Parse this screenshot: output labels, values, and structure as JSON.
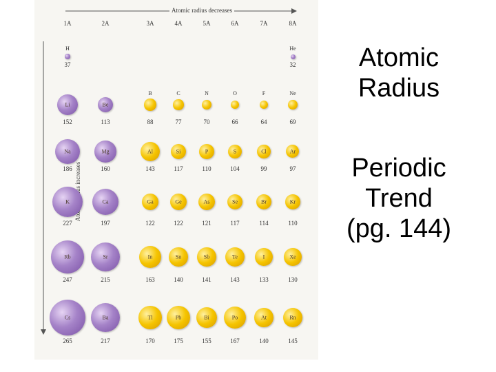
{
  "slide": {
    "title_line1": "Atomic",
    "title_line2": "Radius",
    "subtitle_line1": "Periodic",
    "subtitle_line2": "Trend",
    "subtitle_line3": "(pg. 144)"
  },
  "figure": {
    "top_arrow_label": "Atomic radius decreases",
    "side_arrow_label": "Atomic radius increases",
    "groups": [
      "1A",
      "2A",
      "3A",
      "4A",
      "5A",
      "6A",
      "7A",
      "8A"
    ],
    "colors": {
      "metal_atom": "#9b78c2",
      "nonmetal_atom": "#f5c400"
    },
    "elements": [
      {
        "symbol": "H",
        "radius": "37",
        "group": 0,
        "period": 0,
        "color": "purple"
      },
      {
        "symbol": "He",
        "radius": "32",
        "group": 7,
        "period": 0,
        "color": "purple"
      },
      {
        "symbol": "Li",
        "radius": "152",
        "group": 0,
        "period": 1,
        "color": "purple"
      },
      {
        "symbol": "Be",
        "radius": "113",
        "group": 1,
        "period": 1,
        "color": "purple"
      },
      {
        "symbol": "B",
        "radius": "88",
        "group": 2,
        "period": 1,
        "color": "gold"
      },
      {
        "symbol": "C",
        "radius": "77",
        "group": 3,
        "period": 1,
        "color": "gold"
      },
      {
        "symbol": "N",
        "radius": "70",
        "group": 4,
        "period": 1,
        "color": "gold"
      },
      {
        "symbol": "O",
        "radius": "66",
        "group": 5,
        "period": 1,
        "color": "gold"
      },
      {
        "symbol": "F",
        "radius": "64",
        "group": 6,
        "period": 1,
        "color": "gold"
      },
      {
        "symbol": "Ne",
        "radius": "69",
        "group": 7,
        "period": 1,
        "color": "gold"
      },
      {
        "symbol": "Na",
        "radius": "186",
        "group": 0,
        "period": 2,
        "color": "purple"
      },
      {
        "symbol": "Mg",
        "radius": "160",
        "group": 1,
        "period": 2,
        "color": "purple"
      },
      {
        "symbol": "Al",
        "radius": "143",
        "group": 2,
        "period": 2,
        "color": "gold"
      },
      {
        "symbol": "Si",
        "radius": "117",
        "group": 3,
        "period": 2,
        "color": "gold"
      },
      {
        "symbol": "P",
        "radius": "110",
        "group": 4,
        "period": 2,
        "color": "gold"
      },
      {
        "symbol": "S",
        "radius": "104",
        "group": 5,
        "period": 2,
        "color": "gold"
      },
      {
        "symbol": "Cl",
        "radius": "99",
        "group": 6,
        "period": 2,
        "color": "gold"
      },
      {
        "symbol": "Ar",
        "radius": "97",
        "group": 7,
        "period": 2,
        "color": "gold"
      },
      {
        "symbol": "K",
        "radius": "227",
        "group": 0,
        "period": 3,
        "color": "purple"
      },
      {
        "symbol": "Ca",
        "radius": "197",
        "group": 1,
        "period": 3,
        "color": "purple"
      },
      {
        "symbol": "Ga",
        "radius": "122",
        "group": 2,
        "period": 3,
        "color": "gold"
      },
      {
        "symbol": "Ge",
        "radius": "122",
        "group": 3,
        "period": 3,
        "color": "gold"
      },
      {
        "symbol": "As",
        "radius": "121",
        "group": 4,
        "period": 3,
        "color": "gold"
      },
      {
        "symbol": "Se",
        "radius": "117",
        "group": 5,
        "period": 3,
        "color": "gold"
      },
      {
        "symbol": "Br",
        "radius": "114",
        "group": 6,
        "period": 3,
        "color": "gold"
      },
      {
        "symbol": "Kr",
        "radius": "110",
        "group": 7,
        "period": 3,
        "color": "gold"
      },
      {
        "symbol": "Rb",
        "radius": "247",
        "group": 0,
        "period": 4,
        "color": "purple"
      },
      {
        "symbol": "Sr",
        "radius": "215",
        "group": 1,
        "period": 4,
        "color": "purple"
      },
      {
        "symbol": "In",
        "radius": "163",
        "group": 2,
        "period": 4,
        "color": "gold"
      },
      {
        "symbol": "Sn",
        "radius": "140",
        "group": 3,
        "period": 4,
        "color": "gold"
      },
      {
        "symbol": "Sb",
        "radius": "141",
        "group": 4,
        "period": 4,
        "color": "gold"
      },
      {
        "symbol": "Te",
        "radius": "143",
        "group": 5,
        "period": 4,
        "color": "gold"
      },
      {
        "symbol": "I",
        "radius": "133",
        "group": 6,
        "period": 4,
        "color": "gold"
      },
      {
        "symbol": "Xe",
        "radius": "130",
        "group": 7,
        "period": 4,
        "color": "gold"
      },
      {
        "symbol": "Cs",
        "radius": "265",
        "group": 0,
        "period": 5,
        "color": "purple"
      },
      {
        "symbol": "Ba",
        "radius": "217",
        "group": 1,
        "period": 5,
        "color": "purple"
      },
      {
        "symbol": "Tl",
        "radius": "170",
        "group": 2,
        "period": 5,
        "color": "gold"
      },
      {
        "symbol": "Pb",
        "radius": "175",
        "group": 3,
        "period": 5,
        "color": "gold"
      },
      {
        "symbol": "Bi",
        "radius": "155",
        "group": 4,
        "period": 5,
        "color": "gold"
      },
      {
        "symbol": "Po",
        "radius": "167",
        "group": 5,
        "period": 5,
        "color": "gold"
      },
      {
        "symbol": "At",
        "radius": "140",
        "group": 6,
        "period": 5,
        "color": "gold"
      },
      {
        "symbol": "Rn",
        "radius": "145",
        "group": 7,
        "period": 5,
        "color": "gold"
      }
    ]
  }
}
